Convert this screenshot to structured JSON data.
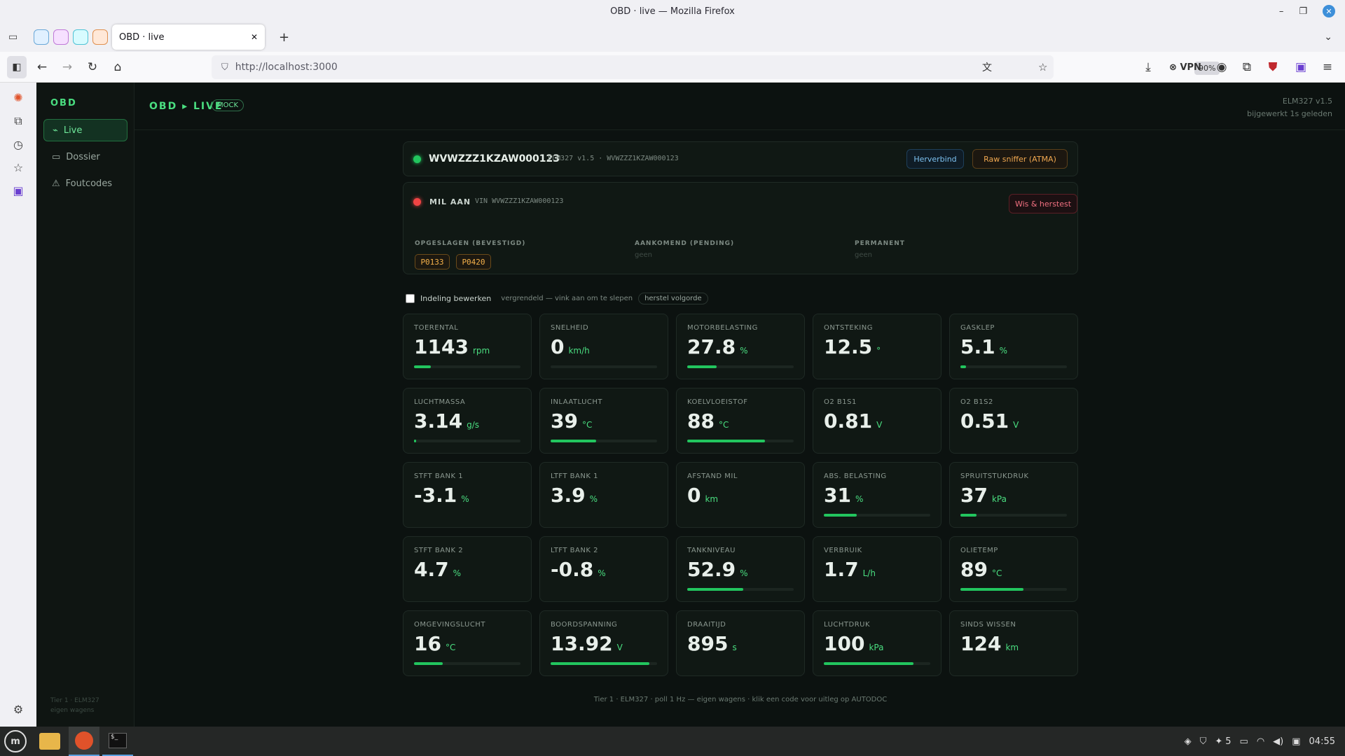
{
  "window": {
    "title": "OBD · live — Mozilla Firefox"
  },
  "browser": {
    "tab_title": "OBD · live",
    "url": "http://localhost:3000",
    "zoom": "90%",
    "vpn_label": "VPN"
  },
  "app": {
    "brand": "OBD",
    "nav": [
      {
        "label": "Live",
        "icon": "activity-icon"
      },
      {
        "label": "Dossier",
        "icon": "folder-icon"
      },
      {
        "label": "Foutcodes",
        "icon": "warning-icon"
      }
    ],
    "sidebar_footer": [
      "Tier 1 · ELM327",
      "eigen wagens"
    ],
    "page_title": "OBD ▸ LIVE",
    "badge": "MOCK",
    "adapter": "ELM327 v1.5",
    "updated": "bijgewerkt 1s geleden"
  },
  "connection": {
    "vin": "WVWZZZ1KZAW000123",
    "meta": "ELM327 v1.5 · WVWZZZ1KZAW000123",
    "reconnect_label": "Herverbind",
    "sniffer_label": "Raw sniffer (ATMA)",
    "status_color": "#22c55e"
  },
  "dtc": {
    "mil_label": "MIL AAN",
    "vin_label": "VIN WVWZZZ1KZAW000123",
    "clear_label": "Wis & herstest",
    "mil_color": "#ef4444",
    "stored_title": "OPGESLAGEN (BEVESTIGD)",
    "stored_codes": [
      "P0133",
      "P0420"
    ],
    "pending_title": "AANKOMEND (PENDING)",
    "pending_value": "geen",
    "permanent_title": "PERMANENT",
    "permanent_value": "geen"
  },
  "layout_controls": {
    "edit_label": "Indeling bewerken",
    "hint": "vergrendeld — vink aan om te slepen",
    "reset_label": "herstel volgorde"
  },
  "tiles": [
    {
      "label": "TOERENTAL",
      "value": "1143",
      "unit": "rpm",
      "bar": 0.16
    },
    {
      "label": "SNELHEID",
      "value": "0",
      "unit": "km/h",
      "bar": 0
    },
    {
      "label": "MOTORBELASTING",
      "value": "27.8",
      "unit": "%",
      "bar": 0.278
    },
    {
      "label": "ONTSTEKING",
      "value": "12.5",
      "unit": "°",
      "bar": null
    },
    {
      "label": "GASKLEP",
      "value": "5.1",
      "unit": "%",
      "bar": 0.051
    },
    {
      "label": "LUCHTMASSA",
      "value": "3.14",
      "unit": "g/s",
      "bar": 0.02
    },
    {
      "label": "INLAATLUCHT",
      "value": "39",
      "unit": "°C",
      "bar": 0.43
    },
    {
      "label": "KOELVLOEISTOF",
      "value": "88",
      "unit": "°C",
      "bar": 0.73
    },
    {
      "label": "O2 B1S1",
      "value": "0.81",
      "unit": "V",
      "bar": null
    },
    {
      "label": "O2 B1S2",
      "value": "0.51",
      "unit": "V",
      "bar": null
    },
    {
      "label": "STFT BANK 1",
      "value": "-3.1",
      "unit": "%",
      "bar": null
    },
    {
      "label": "LTFT BANK 1",
      "value": "3.9",
      "unit": "%",
      "bar": null
    },
    {
      "label": "AFSTAND MIL",
      "value": "0",
      "unit": "km",
      "bar": null
    },
    {
      "label": "ABS. BELASTING",
      "value": "31",
      "unit": "%",
      "bar": 0.31
    },
    {
      "label": "SPRUITSTUKDRUK",
      "value": "37",
      "unit": "kPa",
      "bar": 0.15
    },
    {
      "label": "STFT BANK 2",
      "value": "4.7",
      "unit": "%",
      "bar": null
    },
    {
      "label": "LTFT BANK 2",
      "value": "-0.8",
      "unit": "%",
      "bar": null
    },
    {
      "label": "TANKNIVEAU",
      "value": "52.9",
      "unit": "%",
      "bar": 0.529
    },
    {
      "label": "VERBRUIK",
      "value": "1.7",
      "unit": "L/h",
      "bar": null
    },
    {
      "label": "OLIETEMP",
      "value": "89",
      "unit": "°C",
      "bar": 0.59
    },
    {
      "label": "OMGEVINGSLUCHT",
      "value": "16",
      "unit": "°C",
      "bar": 0.27
    },
    {
      "label": "BOORDSPANNING",
      "value": "13.92",
      "unit": "V",
      "bar": 0.93
    },
    {
      "label": "DRAAITIJD",
      "value": "895",
      "unit": "s",
      "bar": null
    },
    {
      "label": "LUCHTDRUK",
      "value": "100",
      "unit": "kPa",
      "bar": 0.84
    },
    {
      "label": "SINDS WISSEN",
      "value": "124",
      "unit": "km",
      "bar": null
    }
  ],
  "footer": "Tier 1 · ELM327 · poll 1 Hz — eigen wagens · klik een code voor uitleg op AUTODOC",
  "taskbar": {
    "clock": "04:55",
    "notif_count": "5"
  }
}
